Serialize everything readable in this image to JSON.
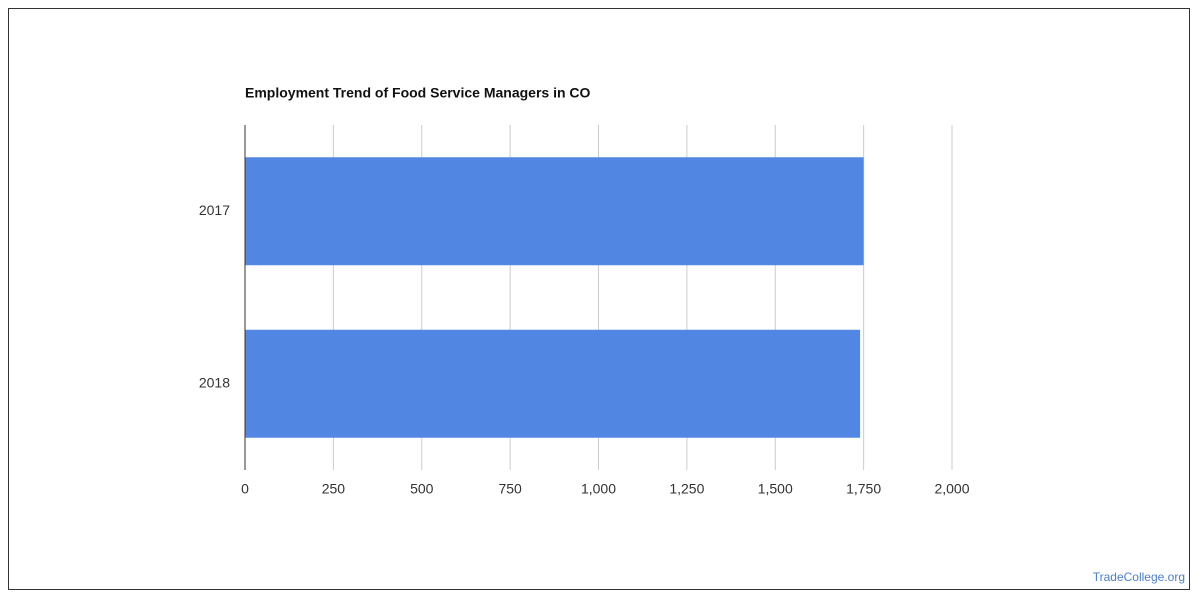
{
  "chart_data": {
    "type": "bar",
    "orientation": "horizontal",
    "title": "Employment Trend of Food Service Managers in CO",
    "categories": [
      "2017",
      "2018"
    ],
    "values": [
      1750,
      1740
    ],
    "color": "#5286e3",
    "xlim": [
      0,
      2000
    ],
    "xticks": [
      0,
      250,
      500,
      750,
      {
        "value": 1000,
        "label": "1,000"
      },
      {
        "value": 1250,
        "label": "1,250"
      },
      {
        "value": 1500,
        "label": "1,500"
      },
      {
        "value": 1750,
        "label": "1,750"
      },
      {
        "value": 2000,
        "label": "2,000"
      }
    ],
    "grid": true
  },
  "watermark": "TradeCollege.org"
}
